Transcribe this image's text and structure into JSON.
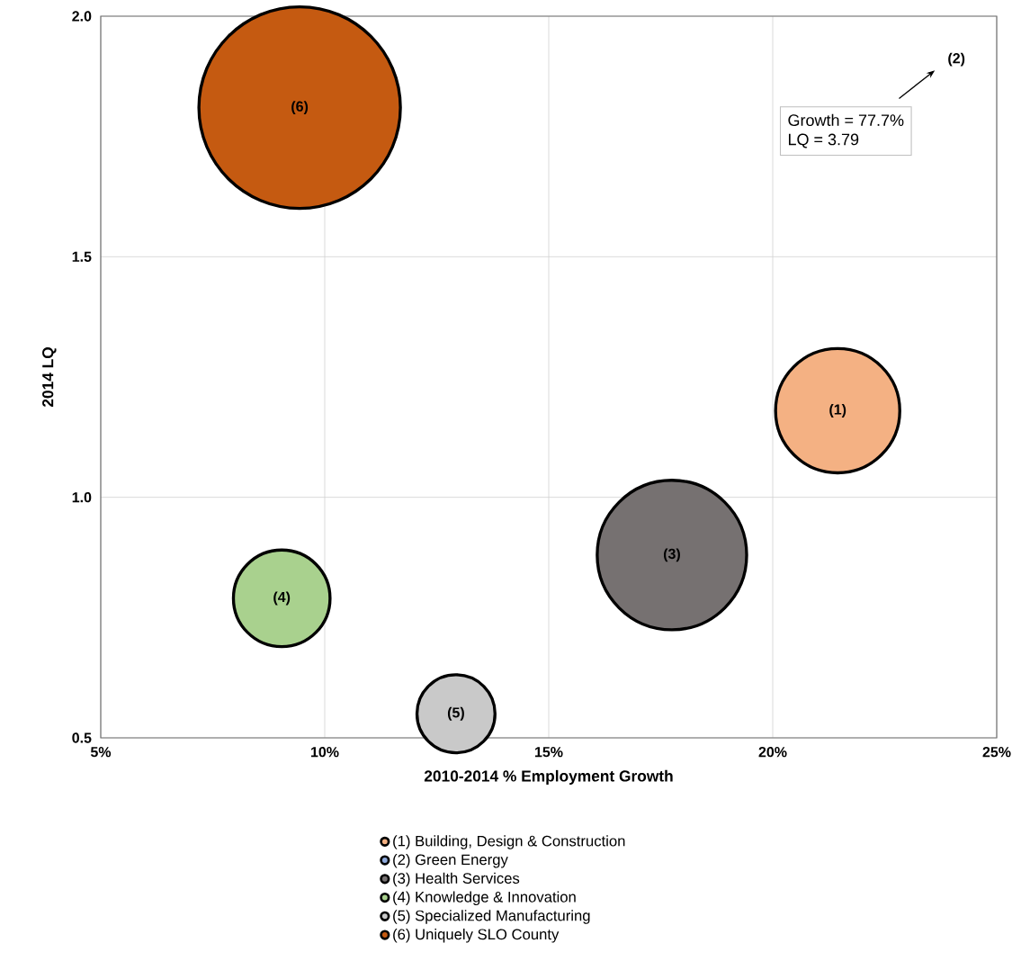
{
  "chart_data": {
    "type": "bubble",
    "xlabel": "2010-2014 % Employment Growth",
    "ylabel": "2014 LQ",
    "xlim": [
      5,
      25
    ],
    "ylim": [
      0.5,
      2.0
    ],
    "xticks": [
      {
        "value": 5,
        "label": "5%"
      },
      {
        "value": 10,
        "label": "10%"
      },
      {
        "value": 15,
        "label": "15%"
      },
      {
        "value": 20,
        "label": "20%"
      },
      {
        "value": 25,
        "label": "25%"
      }
    ],
    "yticks": [
      {
        "value": 0.5,
        "label": "0.5"
      },
      {
        "value": 1.0,
        "label": "1.0"
      },
      {
        "value": 1.5,
        "label": "1.5"
      },
      {
        "value": 2.0,
        "label": "2.0"
      }
    ],
    "grid": true,
    "legend": "bottom",
    "annotations": [
      "(2)",
      "Growth = 77.7%",
      "LQ = 3.79",
      {
        "text": "(1)",
        "x": 21.45,
        "y": 1.18
      },
      {
        "text": "(3)",
        "x": 17.75,
        "y": 0.88
      },
      {
        "text": "(4)",
        "x": 9.04,
        "y": 0.79
      },
      {
        "text": "(5)",
        "x": 12.93,
        "y": 0.55
      },
      {
        "text": "(6)",
        "x": 9.44,
        "y": 1.81
      }
    ],
    "series": [
      {
        "name": "(1) Building, Design & Construction",
        "color": "#f4b183",
        "x": [
          21.45
        ],
        "values": [
          1.18
        ],
        "sizes": [
          0.38
        ]
      },
      {
        "name": "(2) Green Energy",
        "color": "#8faadc",
        "x": [
          null
        ],
        "values": [
          null
        ],
        "sizes": [
          null
        ]
      },
      {
        "name": "(3) Health Services",
        "color": "#767171",
        "x": [
          17.75
        ],
        "values": [
          0.88
        ],
        "sizes": [
          0.55
        ]
      },
      {
        "name": "(4) Knowledge & Innovation",
        "color": "#a9d18e",
        "x": [
          9.04
        ],
        "values": [
          0.79
        ],
        "sizes": [
          0.23
        ]
      },
      {
        "name": "(5) Specialized Manufacturing",
        "color": "#c9c9c9",
        "x": [
          12.93
        ],
        "values": [
          0.55
        ],
        "sizes": [
          0.15
        ]
      },
      {
        "name": "(6) Uniquely SLO County",
        "color": "#c55a11",
        "x": [
          9.44
        ],
        "values": [
          1.81
        ],
        "sizes": [
          1
        ]
      }
    ]
  }
}
